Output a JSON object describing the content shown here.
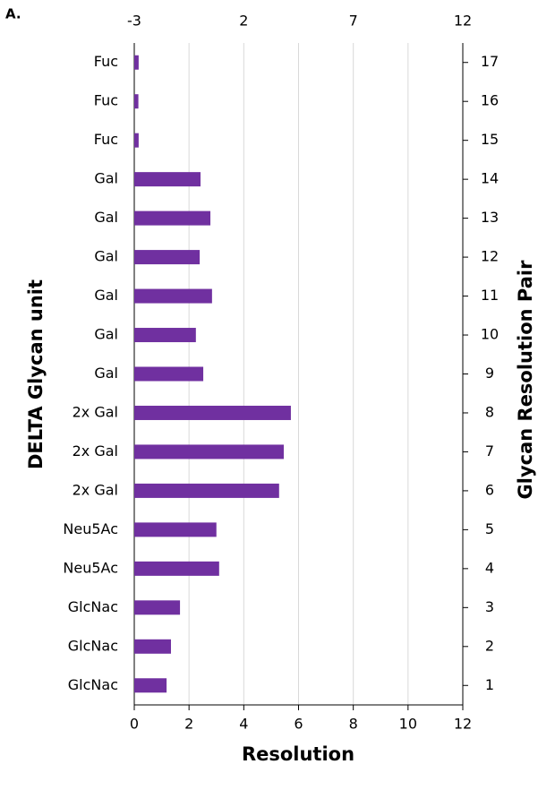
{
  "chart_data": {
    "type": "bar",
    "orientation": "horizontal",
    "panel_label": "A.",
    "x_label": "Resolution",
    "y_label": "DELTA Glycan unit",
    "y2_label": "Glycan Resolution Pair",
    "categories": [
      "GlcNac",
      "GlcNac",
      "GlcNac",
      "Neu5Ac",
      "Neu5Ac",
      "2x Gal",
      "2x Gal",
      "2x Gal",
      "Gal",
      "Gal",
      "Gal",
      "Gal",
      "Gal",
      "Gal",
      "Fuc",
      "Fuc",
      "Fuc"
    ],
    "pairs": [
      1,
      2,
      3,
      4,
      5,
      6,
      7,
      8,
      9,
      10,
      11,
      12,
      13,
      14,
      15,
      16,
      17
    ],
    "values": [
      1.18,
      1.34,
      1.67,
      3.1,
      3.0,
      5.29,
      5.46,
      5.72,
      2.52,
      2.25,
      2.84,
      2.39,
      2.78,
      2.42,
      0.16,
      0.15,
      0.16
    ],
    "color": "#7030a0",
    "xlim": [
      0,
      12
    ],
    "xticks": [
      0,
      2,
      4,
      6,
      8,
      10,
      12
    ],
    "x2lim": [
      -3,
      12
    ],
    "x2ticks": [
      -3,
      2,
      7,
      12
    ],
    "grid": true
  }
}
